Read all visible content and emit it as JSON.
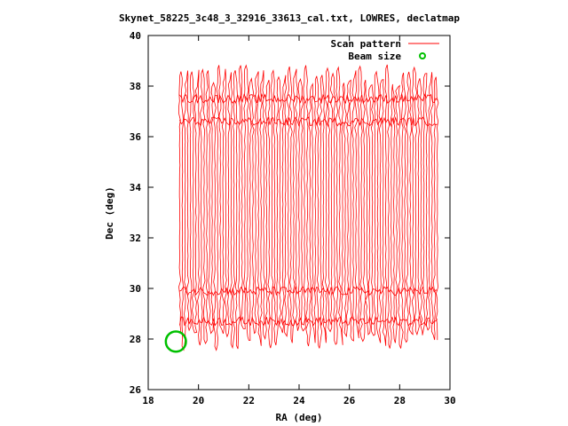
{
  "chart_data": {
    "type": "line",
    "title": "Skynet_58225_3c48_3_32916_33613_cal.txt, LOWRES, declatmap",
    "xlabel": "RA (deg)",
    "ylabel": "Dec (deg)",
    "xlim": [
      18,
      30
    ],
    "ylim": [
      26,
      40
    ],
    "x_ticks": [
      "18",
      "20",
      "22",
      "24",
      "26",
      "28",
      "30"
    ],
    "y_ticks": [
      "26",
      "28",
      "30",
      "32",
      "34",
      "36",
      "38",
      "40"
    ],
    "legend_position": "top-right",
    "series": [
      {
        "name": "Scan pattern",
        "color": "#ff0000",
        "pattern": "back-and-forth declination scans",
        "ra_range": [
          19.1,
          29.6
        ],
        "dec_range": [
          27.6,
          38.8
        ],
        "scan_count": 96,
        "dense_dec_bands": [
          28.7,
          29.9,
          36.6,
          37.5
        ]
      },
      {
        "name": "Beam size",
        "color": "#00c000",
        "marker": "circle",
        "center": [
          19.1,
          27.9
        ],
        "diameter_deg": 0.8
      }
    ]
  }
}
